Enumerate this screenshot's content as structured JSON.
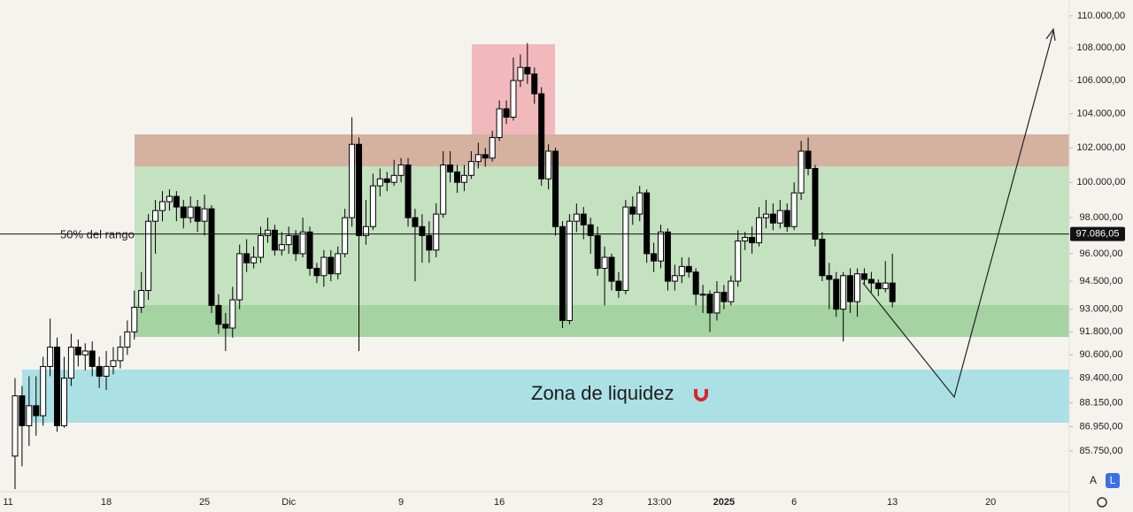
{
  "chart_data": {
    "type": "candlestick",
    "log_scale": true,
    "grid": false,
    "up_color": "#ffffff",
    "down_color": "#000000",
    "x": [
      0.5,
      1,
      1.5,
      2,
      2.5,
      3,
      3.5,
      4,
      4.5,
      5,
      5.5,
      6,
      6.5,
      7,
      7.5,
      8,
      8.5,
      9,
      9.5,
      10,
      10.5,
      11,
      11.5,
      12,
      12.5,
      13,
      13.5,
      14,
      14.5,
      15,
      15.5,
      16,
      16.5,
      17,
      17.5,
      18,
      18.5,
      19,
      19.5,
      20,
      20.5,
      21,
      21.5,
      22,
      22.5,
      23,
      23.5,
      24,
      24.5,
      25,
      25.5,
      26,
      26.5,
      27,
      27.5,
      28,
      28.5,
      29,
      29.5,
      30,
      30.5,
      31,
      31.5,
      32,
      32.5,
      33,
      33.5,
      34,
      34.5,
      35,
      35.5,
      36,
      36.5,
      37,
      37.5,
      38,
      38.5,
      39,
      39.5,
      40,
      40.5,
      41,
      41.5,
      42,
      42.5,
      43,
      43.5,
      44,
      44.5,
      45,
      45.5,
      46,
      46.5,
      47,
      47.5,
      48,
      48.5,
      49,
      49.5,
      50,
      50.5,
      51,
      51.5,
      52,
      52.5,
      53,
      53.5,
      54,
      54.5,
      55,
      55.5,
      56,
      56.5,
      57,
      57.5,
      58,
      58.5,
      59,
      59.5,
      60,
      60.5,
      61,
      61.5,
      62,
      62.5,
      63
    ],
    "open": [
      85500,
      88500,
      87000,
      88000,
      87500,
      90000,
      91000,
      87000,
      89400,
      91000,
      90600,
      90800,
      90000,
      89500,
      90000,
      90300,
      91000,
      91800,
      93100,
      94000,
      97800,
      98400,
      98900,
      99200,
      98600,
      98000,
      98600,
      97800,
      98500,
      93200,
      92200,
      92000,
      93500,
      96000,
      95500,
      95800,
      97000,
      97300,
      96200,
      96500,
      97000,
      96000,
      97200,
      95200,
      94800,
      95800,
      94900,
      96000,
      98000,
      102200,
      97000,
      97500,
      99800,
      100200,
      100000,
      100400,
      101000,
      98000,
      97500,
      97000,
      96200,
      98200,
      101000,
      100600,
      100000,
      100400,
      101200,
      101600,
      101400,
      102600,
      104300,
      103800,
      106000,
      106800,
      106400,
      105200,
      100200,
      101800,
      97500,
      92400,
      97800,
      98200,
      97600,
      97000,
      95200,
      95800,
      94500,
      94000,
      98600,
      98200,
      99400,
      96000,
      95600,
      97200,
      94500,
      94800,
      95300,
      95000,
      93800,
      93800,
      92800,
      93900,
      93400,
      94500,
      96700,
      96900,
      96600,
      98000,
      98200,
      97700,
      98400,
      97500,
      99400,
      101800,
      100800,
      96800,
      94800,
      94600,
      93000,
      94800,
      93400,
      94900,
      94600,
      94400,
      94100,
      94400
    ],
    "high": [
      89400,
      89000,
      89500,
      89500,
      90500,
      92500,
      91500,
      90500,
      91700,
      91400,
      91200,
      91300,
      90500,
      90800,
      91000,
      91600,
      92400,
      94000,
      95000,
      98200,
      99000,
      99500,
      99600,
      99500,
      99000,
      99200,
      99000,
      99300,
      98700,
      93800,
      92800,
      94200,
      96500,
      96800,
      96400,
      97500,
      98000,
      97600,
      97200,
      97500,
      97300,
      98000,
      97500,
      95500,
      96200,
      96200,
      96400,
      98500,
      103800,
      102600,
      99000,
      100500,
      100800,
      100600,
      101300,
      101400,
      101400,
      98500,
      98200,
      97800,
      98800,
      101800,
      101800,
      101000,
      101000,
      101800,
      102300,
      102000,
      103000,
      104800,
      104800,
      107400,
      107600,
      108300,
      106800,
      105600,
      102200,
      102000,
      97800,
      98200,
      98800,
      98600,
      98000,
      97500,
      96400,
      96000,
      95000,
      99000,
      99200,
      99800,
      99600,
      96600,
      97600,
      97400,
      95400,
      95800,
      95800,
      95200,
      94300,
      94000,
      94500,
      94300,
      94800,
      97300,
      97200,
      97500,
      98600,
      99000,
      98800,
      99000,
      98800,
      100000,
      102400,
      102600,
      101000,
      97200,
      95500,
      95000,
      95000,
      95200,
      95200,
      95200,
      95000,
      94600,
      95600,
      96000
    ],
    "low": [
      83900,
      85000,
      86000,
      86500,
      87000,
      89500,
      86700,
      86900,
      89000,
      90000,
      89800,
      89500,
      88900,
      88800,
      89600,
      89900,
      90600,
      91400,
      92800,
      93500,
      96000,
      97800,
      98400,
      97800,
      97400,
      97700,
      97200,
      97000,
      92800,
      91700,
      90800,
      91500,
      93000,
      95000,
      95200,
      95500,
      96600,
      95900,
      95900,
      96000,
      95600,
      95800,
      94800,
      94400,
      94200,
      94500,
      94600,
      95800,
      97500,
      90800,
      96500,
      97300,
      99200,
      99500,
      99800,
      100000,
      97500,
      94500,
      95500,
      95500,
      95800,
      98000,
      100000,
      99400,
      99500,
      100200,
      100800,
      100900,
      101200,
      102400,
      103400,
      103600,
      105600,
      105800,
      104600,
      99800,
      99600,
      97000,
      92000,
      92200,
      97200,
      96800,
      96000,
      94800,
      93200,
      94000,
      93600,
      93800,
      97600,
      97800,
      95500,
      95000,
      95200,
      94000,
      94000,
      94400,
      94700,
      93200,
      92800,
      91800,
      92400,
      93000,
      93200,
      94200,
      96200,
      96000,
      96400,
      97400,
      97300,
      97400,
      97200,
      97300,
      99000,
      100400,
      96400,
      94500,
      93000,
      92600,
      91300,
      92800,
      92600,
      94300,
      93900,
      93700,
      93900,
      93100
    ],
    "close": [
      88500,
      87000,
      88000,
      87500,
      90000,
      91000,
      87000,
      89400,
      91000,
      90600,
      90800,
      90000,
      89500,
      90000,
      90300,
      91000,
      91800,
      93100,
      94000,
      97800,
      98400,
      98900,
      99200,
      98600,
      98000,
      98600,
      97800,
      98500,
      93200,
      92200,
      92000,
      93500,
      96000,
      95500,
      95800,
      97000,
      97300,
      96200,
      96500,
      97000,
      96000,
      97200,
      95200,
      94800,
      95800,
      94900,
      96000,
      98000,
      102200,
      97000,
      97500,
      99800,
      100200,
      100000,
      100400,
      101000,
      98000,
      97500,
      97000,
      96200,
      98200,
      101000,
      100600,
      100000,
      100400,
      101200,
      101600,
      101400,
      102600,
      104300,
      103800,
      106000,
      106800,
      106400,
      105200,
      100200,
      101800,
      97500,
      92400,
      97800,
      98200,
      97600,
      97000,
      95200,
      95800,
      94500,
      94000,
      98600,
      98200,
      99400,
      96000,
      95600,
      97200,
      94500,
      94800,
      95300,
      95000,
      93800,
      93800,
      92800,
      93900,
      93400,
      94500,
      96700,
      96900,
      96600,
      98000,
      98200,
      97700,
      98400,
      97500,
      99400,
      101800,
      100800,
      96800,
      94800,
      94600,
      93000,
      94800,
      93400,
      94900,
      94600,
      94400,
      94100,
      94400,
      93400
    ],
    "xlim": [
      -0.57,
      75.6
    ],
    "xticks": [
      {
        "value": 0,
        "label": "11"
      },
      {
        "value": 7,
        "label": "18"
      },
      {
        "value": 14,
        "label": "25"
      },
      {
        "value": 20,
        "label": "Dic"
      },
      {
        "value": 28,
        "label": "9"
      },
      {
        "value": 35,
        "label": "16"
      },
      {
        "value": 42,
        "label": "23"
      },
      {
        "value": 46.4,
        "label": "13:00"
      },
      {
        "value": 51,
        "label": "2025"
      },
      {
        "value": 56,
        "label": "6"
      },
      {
        "value": 63,
        "label": "13"
      },
      {
        "value": 70,
        "label": "20"
      }
    ],
    "ylim": [
      83820,
      111000
    ],
    "yticks": [
      {
        "value": 110000,
        "label": "110.000,00"
      },
      {
        "value": 108000,
        "label": "108.000,00"
      },
      {
        "value": 106000,
        "label": "106.000,00"
      },
      {
        "value": 104000,
        "label": "104.000,00"
      },
      {
        "value": 102000,
        "label": "102.000,00"
      },
      {
        "value": 100000,
        "label": "100.000,00"
      },
      {
        "value": 98000,
        "label": "98.000,00"
      },
      {
        "value": 96000,
        "label": "96.000,00"
      },
      {
        "value": 94500,
        "label": "94.500,00"
      },
      {
        "value": 93000,
        "label": "93.000,00"
      },
      {
        "value": 91800,
        "label": "91.800,00"
      },
      {
        "value": 90600,
        "label": "90.600,00"
      },
      {
        "value": 89400,
        "label": "89.400,00"
      },
      {
        "value": 88150,
        "label": "88.150,00"
      },
      {
        "value": 86950,
        "label": "86.950,00"
      },
      {
        "value": 85750,
        "label": "85.750,00"
      }
    ],
    "price_line": {
      "value": 97086.05,
      "label": "97.086,05"
    },
    "range_label": "50% del rango",
    "zone_label": "Zona de liquidez",
    "scale_buttons": [
      "A",
      "L"
    ]
  }
}
